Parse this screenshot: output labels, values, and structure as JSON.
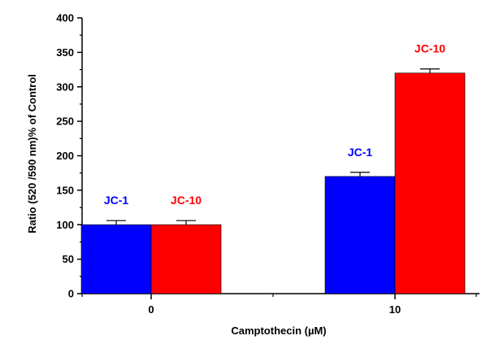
{
  "chart_data": {
    "type": "bar",
    "xlabel": "Camptothecin (µM)",
    "ylabel": "Ratio (520 /590 nm)% of Control",
    "categories": [
      "0",
      "10"
    ],
    "series": [
      {
        "name": "JC-1",
        "color": "#0000ff",
        "values": [
          100,
          170
        ],
        "errors": [
          6,
          6
        ]
      },
      {
        "name": "JC-10",
        "color": "#ff0000",
        "values": [
          100,
          320
        ],
        "errors": [
          6,
          6
        ]
      }
    ],
    "ylim": [
      0,
      400
    ],
    "yticks": [
      0,
      50,
      100,
      150,
      200,
      250,
      300,
      350,
      400
    ],
    "grid": false
  }
}
